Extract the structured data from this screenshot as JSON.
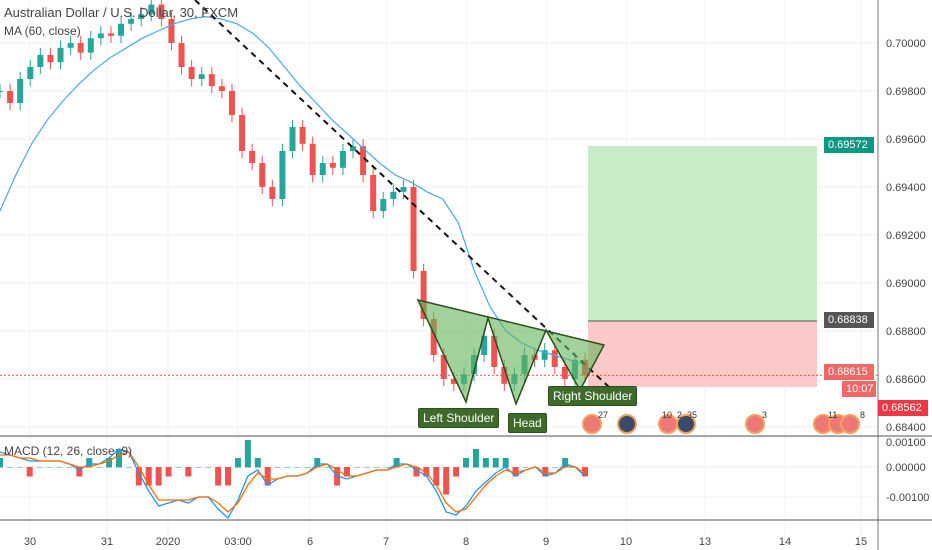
{
  "header": {
    "title": "Australian Dollar / U.S. Dollar, 30, FXCM",
    "indicator": "MA (60, close)",
    "macd_label": "MACD (12, 26, close, 9)"
  },
  "chart_data": {
    "type": "candlestick",
    "x_ticks": [
      "30",
      "31",
      "2020",
      "03:00",
      "6",
      "7",
      "8",
      "9",
      "10",
      "13",
      "14",
      "15"
    ],
    "y_ticks": [
      "0.70000",
      "0.69800",
      "0.69600",
      "0.69400",
      "0.69200",
      "0.69000",
      "0.68800",
      "0.68600",
      "0.68400"
    ],
    "ylim": [
      0.6835,
      0.7018
    ],
    "closes": [
      0.698,
      0.6975,
      0.6985,
      0.699,
      0.6995,
      0.6992,
      0.6998,
      0.7,
      0.6996,
      0.7002,
      0.7004,
      0.7003,
      0.7008,
      0.701,
      0.7012,
      0.7016,
      0.701,
      0.7,
      0.699,
      0.6985,
      0.6987,
      0.6982,
      0.698,
      0.697,
      0.6955,
      0.695,
      0.694,
      0.6935,
      0.6955,
      0.6965,
      0.6958,
      0.6945,
      0.695,
      0.6948,
      0.6955,
      0.6957,
      0.6945,
      0.693,
      0.6935,
      0.6938,
      0.694,
      0.6905,
      0.6885,
      0.687,
      0.686,
      0.6858,
      0.6862,
      0.687,
      0.6878,
      0.6865,
      0.6858,
      0.6862,
      0.687,
      0.6868,
      0.6872,
      0.6865,
      0.686,
      0.6868,
      0.68615
    ],
    "ma60": [
      0.693,
      0.6945,
      0.6958,
      0.6968,
      0.6976,
      0.6983,
      0.6989,
      0.6994,
      0.6998,
      0.7002,
      0.7005,
      0.7008,
      0.701,
      0.7011,
      0.701,
      0.7008,
      0.7004,
      0.6998,
      0.699,
      0.6982,
      0.6975,
      0.6968,
      0.6962,
      0.6956,
      0.695,
      0.6945,
      0.6942,
      0.6938,
      0.6935,
      0.6925,
      0.6905,
      0.689,
      0.688,
      0.6875,
      0.6872,
      0.687,
      0.6868,
      0.6866
    ],
    "macd": {
      "ylim": [
        -0.0016,
        0.0011
      ],
      "y_ticks": [
        "0.00100",
        "0.00000",
        "-0.00100"
      ],
      "macd_line": [
        0.0005,
        0.0004,
        0.0003,
        0.0002,
        0.0002,
        0.0002,
        0.0002,
        0.0001,
        -0.0001,
        0.0001,
        0.0001,
        0.0003,
        0.0006,
        0.0005,
        -0.0002,
        -0.0008,
        -0.0013,
        -0.0012,
        -0.0011,
        -0.0012,
        -0.001,
        -0.001,
        -0.0014,
        -0.0017,
        -0.0011,
        -0.0003,
        -0.0001,
        -0.0006,
        -0.0004,
        -0.0003,
        -0.0003,
        -0.0002,
        0.0001,
        0.0001,
        -0.0003,
        -0.0004,
        -0.0003,
        -0.0002,
        -0.0001,
        -0.0001,
        0.0001,
        0.0001,
        -0.0001,
        -0.0003,
        -0.0008,
        -0.0015,
        -0.0016,
        -0.0013,
        -0.0008,
        -0.0005,
        -0.0002,
        0.0,
        -0.0003,
        -0.0001,
        0.0,
        -0.0003,
        -0.0002,
        0.0001,
        0.0,
        -0.0003
      ],
      "signal_line": [
        0.0004,
        0.0004,
        0.0003,
        0.0003,
        0.0002,
        0.0002,
        0.0002,
        0.0001,
        0.0,
        0.0,
        0.0001,
        0.0002,
        0.0004,
        0.0005,
        0.0,
        -0.0006,
        -0.0011,
        -0.0011,
        -0.0011,
        -0.0011,
        -0.001,
        -0.001,
        -0.0012,
        -0.0015,
        -0.0012,
        -0.0006,
        -0.0002,
        -0.0004,
        -0.0004,
        -0.0003,
        -0.0003,
        -0.0002,
        0.0,
        0.0001,
        -0.0001,
        -0.0003,
        -0.0003,
        -0.0002,
        -0.0001,
        -0.0001,
        0.0,
        0.0001,
        0.0,
        -0.0002,
        -0.0006,
        -0.0012,
        -0.0015,
        -0.0014,
        -0.001,
        -0.0006,
        -0.0003,
        -0.0001,
        -0.0002,
        -0.0001,
        0.0,
        -0.0002,
        -0.0002,
        0.0,
        0.0,
        -0.0002
      ]
    },
    "position": {
      "entry": "0.68838",
      "target": "0.69572",
      "stop": "0.68562",
      "last": "0.68615",
      "countdown": "10:07"
    },
    "patterns": [
      "Left Shoulder",
      "Head",
      "Right Shoulder"
    ],
    "events": [
      "27",
      "10",
      "2",
      "35",
      "3",
      "11",
      "8"
    ],
    "colors": {
      "up": "#26a69a",
      "down": "#ef5350",
      "ma": "#4aa8e8",
      "macd": "#2196f3",
      "signal": "#ff6d00",
      "profit": "#c8ebc8",
      "loss": "#fcc8c8",
      "target_tag": "#089981",
      "stop_tag": "#f23645"
    }
  }
}
